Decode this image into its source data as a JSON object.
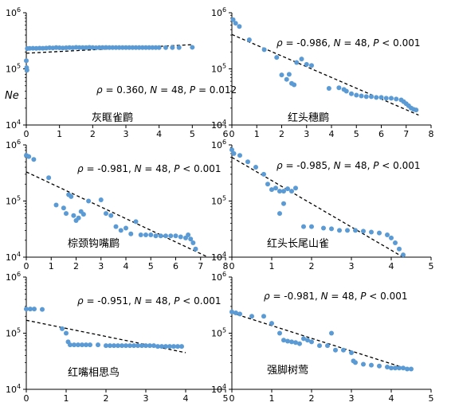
{
  "figure": {
    "y_axis_label": "Ne"
  },
  "chart_data": [
    {
      "type": "scatter",
      "species": "灰眶雀鹛",
      "stat": {
        "rho": "0.360",
        "n": "48",
        "p_operator": "=",
        "p": "0.012"
      },
      "xlim": [
        0,
        6
      ],
      "ylim": [
        10000,
        1000000
      ],
      "yscale": "log",
      "xticks": [
        0,
        1,
        2,
        3,
        4,
        5,
        6
      ],
      "yticks": [
        {
          "value": 10000,
          "base": "10",
          "exp": "4"
        },
        {
          "value": 100000,
          "base": "10",
          "exp": "5"
        },
        {
          "value": 1000000,
          "base": "10",
          "exp": "6"
        }
      ],
      "trend": [
        [
          0,
          190000
        ],
        [
          5,
          270000
        ]
      ],
      "points": [
        [
          0.0,
          140000
        ],
        [
          0.01,
          105000
        ],
        [
          0.02,
          95000
        ],
        [
          0.03,
          230000
        ],
        [
          0.1,
          232000
        ],
        [
          0.2,
          233000
        ],
        [
          0.3,
          232000
        ],
        [
          0.4,
          234000
        ],
        [
          0.5,
          233000
        ],
        [
          0.6,
          235000
        ],
        [
          0.7,
          238000
        ],
        [
          0.8,
          236000
        ],
        [
          0.9,
          240000
        ],
        [
          1.0,
          238000
        ],
        [
          1.1,
          236000
        ],
        [
          1.2,
          238000
        ],
        [
          1.3,
          240000
        ],
        [
          1.4,
          238000
        ],
        [
          1.5,
          242000
        ],
        [
          1.6,
          240000
        ],
        [
          1.7,
          240000
        ],
        [
          1.8,
          240000
        ],
        [
          1.9,
          242000
        ],
        [
          2.0,
          240000
        ],
        [
          2.1,
          238000
        ],
        [
          2.2,
          240000
        ],
        [
          2.3,
          240000
        ],
        [
          2.4,
          241000
        ],
        [
          2.5,
          240000
        ],
        [
          2.6,
          240000
        ],
        [
          2.7,
          240000
        ],
        [
          2.8,
          240000
        ],
        [
          2.9,
          240000
        ],
        [
          3.0,
          240000
        ],
        [
          3.1,
          240000
        ],
        [
          3.2,
          240000
        ],
        [
          3.3,
          240000
        ],
        [
          3.4,
          240000
        ],
        [
          3.5,
          240000
        ],
        [
          3.6,
          240000
        ],
        [
          3.7,
          240000
        ],
        [
          3.8,
          240000
        ],
        [
          3.9,
          240000
        ],
        [
          4.0,
          240000
        ],
        [
          4.2,
          240000
        ],
        [
          4.4,
          240000
        ],
        [
          4.6,
          240000
        ],
        [
          5.0,
          242000
        ]
      ]
    },
    {
      "type": "scatter",
      "species": "红头穗鹛",
      "stat": {
        "rho": "-0.986",
        "n": "48",
        "p_operator": "<",
        "p": "0.001"
      },
      "xlim": [
        0,
        8
      ],
      "ylim": [
        10000,
        1000000
      ],
      "yscale": "log",
      "xticks": [
        0,
        1,
        2,
        3,
        4,
        5,
        6,
        7,
        8
      ],
      "yticks": [
        {
          "value": 10000,
          "base": "10",
          "exp": "4"
        },
        {
          "value": 100000,
          "base": "10",
          "exp": "5"
        },
        {
          "value": 1000000,
          "base": "10",
          "exp": "6"
        }
      ],
      "trend": [
        [
          0,
          410000
        ],
        [
          7.5,
          15000
        ]
      ],
      "points": [
        [
          0.05,
          750000
        ],
        [
          0.15,
          650000
        ],
        [
          0.3,
          570000
        ],
        [
          0.7,
          330000
        ],
        [
          1.3,
          220000
        ],
        [
          1.8,
          160000
        ],
        [
          2.0,
          78000
        ],
        [
          2.2,
          65000
        ],
        [
          2.3,
          80000
        ],
        [
          2.4,
          55000
        ],
        [
          2.5,
          52000
        ],
        [
          2.6,
          130000
        ],
        [
          2.8,
          150000
        ],
        [
          3.0,
          120000
        ],
        [
          3.2,
          115000
        ],
        [
          3.9,
          45000
        ],
        [
          4.3,
          46000
        ],
        [
          4.5,
          43000
        ],
        [
          4.6,
          40000
        ],
        [
          4.8,
          36000
        ],
        [
          5.0,
          34000
        ],
        [
          5.2,
          33000
        ],
        [
          5.4,
          32000
        ],
        [
          5.6,
          32000
        ],
        [
          5.8,
          31000
        ],
        [
          6.0,
          31000
        ],
        [
          6.2,
          30000
        ],
        [
          6.4,
          30000
        ],
        [
          6.6,
          29000
        ],
        [
          6.8,
          28000
        ],
        [
          6.9,
          26000
        ],
        [
          7.0,
          24000
        ],
        [
          7.1,
          22000
        ],
        [
          7.2,
          20000
        ],
        [
          7.3,
          19000
        ],
        [
          7.4,
          18500
        ]
      ]
    },
    {
      "type": "scatter",
      "species": "棕颈钩嘴鹛",
      "stat": {
        "rho": "-0.981",
        "n": "48",
        "p_operator": "<",
        "p": "0.001"
      },
      "xlim": [
        0,
        8
      ],
      "ylim": [
        10000,
        1000000
      ],
      "yscale": "log",
      "xticks": [
        0,
        1,
        2,
        3,
        4,
        5,
        6,
        7,
        8
      ],
      "yticks": [
        {
          "value": 10000,
          "base": "10",
          "exp": "4"
        },
        {
          "value": 100000,
          "base": "10",
          "exp": "5"
        },
        {
          "value": 1000000,
          "base": "10",
          "exp": "6"
        }
      ],
      "trend": [
        [
          0,
          330000
        ],
        [
          7.3,
          10000
        ]
      ],
      "points": [
        [
          0.0,
          650000
        ],
        [
          0.1,
          620000
        ],
        [
          0.3,
          550000
        ],
        [
          0.9,
          260000
        ],
        [
          1.2,
          85000
        ],
        [
          1.5,
          75000
        ],
        [
          1.6,
          60000
        ],
        [
          1.7,
          130000
        ],
        [
          1.8,
          120000
        ],
        [
          1.9,
          55000
        ],
        [
          2.0,
          45000
        ],
        [
          2.1,
          50000
        ],
        [
          2.2,
          65000
        ],
        [
          2.3,
          58000
        ],
        [
          2.5,
          100000
        ],
        [
          3.0,
          105000
        ],
        [
          3.2,
          60000
        ],
        [
          3.4,
          55000
        ],
        [
          3.6,
          35000
        ],
        [
          3.8,
          30000
        ],
        [
          4.0,
          33000
        ],
        [
          4.2,
          26000
        ],
        [
          4.4,
          43000
        ],
        [
          4.6,
          25000
        ],
        [
          4.8,
          25000
        ],
        [
          5.0,
          25000
        ],
        [
          5.2,
          24000
        ],
        [
          5.4,
          24000
        ],
        [
          5.6,
          24000
        ],
        [
          5.8,
          24000
        ],
        [
          6.0,
          24000
        ],
        [
          6.2,
          23000
        ],
        [
          6.4,
          22000
        ],
        [
          6.5,
          25000
        ],
        [
          6.6,
          21000
        ],
        [
          6.7,
          18000
        ],
        [
          6.8,
          14000
        ]
      ]
    },
    {
      "type": "scatter",
      "species": "红头长尾山雀",
      "stat": {
        "rho": "-0.985",
        "n": "48",
        "p_operator": "<",
        "p": "0.001"
      },
      "xlim": [
        0,
        5
      ],
      "ylim": [
        10000,
        1000000
      ],
      "yscale": "log",
      "xticks": [
        0,
        1,
        2,
        3,
        4,
        5
      ],
      "yticks": [
        {
          "value": 10000,
          "base": "10",
          "exp": "4"
        },
        {
          "value": 100000,
          "base": "10",
          "exp": "5"
        },
        {
          "value": 1000000,
          "base": "10",
          "exp": "6"
        }
      ],
      "trend": [
        [
          0,
          600000
        ],
        [
          4.3,
          10000
        ]
      ],
      "points": [
        [
          0.0,
          820000
        ],
        [
          0.05,
          700000
        ],
        [
          0.2,
          650000
        ],
        [
          0.4,
          500000
        ],
        [
          0.6,
          400000
        ],
        [
          0.8,
          300000
        ],
        [
          0.9,
          200000
        ],
        [
          1.0,
          160000
        ],
        [
          1.1,
          170000
        ],
        [
          1.2,
          150000
        ],
        [
          1.3,
          150000
        ],
        [
          1.4,
          165000
        ],
        [
          1.5,
          150000
        ],
        [
          1.6,
          170000
        ],
        [
          1.2,
          60000
        ],
        [
          1.3,
          90000
        ],
        [
          1.8,
          35000
        ],
        [
          2.0,
          35000
        ],
        [
          2.3,
          33000
        ],
        [
          2.5,
          32000
        ],
        [
          2.7,
          30000
        ],
        [
          2.9,
          30000
        ],
        [
          3.1,
          30000
        ],
        [
          3.3,
          29000
        ],
        [
          3.5,
          28000
        ],
        [
          3.7,
          27000
        ],
        [
          3.9,
          25000
        ],
        [
          4.0,
          22000
        ],
        [
          4.1,
          18000
        ],
        [
          4.2,
          14000
        ],
        [
          4.3,
          11000
        ]
      ]
    },
    {
      "type": "scatter",
      "species": "红嘴相思鸟",
      "stat": {
        "rho": "-0.951",
        "n": "48",
        "p_operator": "<",
        "p": "0.001"
      },
      "xlim": [
        0,
        5
      ],
      "ylim": [
        10000,
        1000000
      ],
      "yscale": "log",
      "xticks": [
        0,
        1,
        2,
        3,
        4,
        5
      ],
      "yticks": [
        {
          "value": 10000,
          "base": "10",
          "exp": "4"
        },
        {
          "value": 100000,
          "base": "10",
          "exp": "5"
        },
        {
          "value": 1000000,
          "base": "10",
          "exp": "6"
        }
      ],
      "trend": [
        [
          0,
          170000
        ],
        [
          4,
          45000
        ]
      ],
      "points": [
        [
          0.0,
          270000
        ],
        [
          0.1,
          270000
        ],
        [
          0.2,
          270000
        ],
        [
          0.4,
          265000
        ],
        [
          0.9,
          120000
        ],
        [
          1.0,
          100000
        ],
        [
          1.05,
          70000
        ],
        [
          1.1,
          62000
        ],
        [
          1.2,
          62000
        ],
        [
          1.3,
          62000
        ],
        [
          1.4,
          62000
        ],
        [
          1.5,
          62000
        ],
        [
          1.6,
          62000
        ],
        [
          1.8,
          62000
        ],
        [
          2.0,
          60000
        ],
        [
          2.1,
          60000
        ],
        [
          2.2,
          60000
        ],
        [
          2.3,
          60000
        ],
        [
          2.4,
          60000
        ],
        [
          2.5,
          60000
        ],
        [
          2.6,
          60000
        ],
        [
          2.7,
          60000
        ],
        [
          2.8,
          60000
        ],
        [
          2.9,
          60000
        ],
        [
          3.0,
          60000
        ],
        [
          3.1,
          60000
        ],
        [
          3.2,
          60000
        ],
        [
          3.3,
          58000
        ],
        [
          3.4,
          58000
        ],
        [
          3.5,
          58000
        ],
        [
          3.6,
          58000
        ],
        [
          3.7,
          58000
        ],
        [
          3.8,
          58000
        ],
        [
          3.9,
          58000
        ]
      ]
    },
    {
      "type": "scatter",
      "species": "强脚树莺",
      "stat": {
        "rho": "-0.981",
        "n": "48",
        "p_operator": "<",
        "p": "0.001"
      },
      "xlim": [
        0,
        5
      ],
      "ylim": [
        10000,
        1000000
      ],
      "yscale": "log",
      "xticks": [
        0,
        1,
        2,
        3,
        4,
        5
      ],
      "yticks": [
        {
          "value": 10000,
          "base": "10",
          "exp": "4"
        },
        {
          "value": 100000,
          "base": "10",
          "exp": "5"
        },
        {
          "value": 1000000,
          "base": "10",
          "exp": "6"
        }
      ],
      "trend": [
        [
          0,
          230000
        ],
        [
          4.5,
          22000
        ]
      ],
      "points": [
        [
          0.0,
          240000
        ],
        [
          0.1,
          230000
        ],
        [
          0.2,
          220000
        ],
        [
          0.5,
          200000
        ],
        [
          0.8,
          200000
        ],
        [
          1.0,
          150000
        ],
        [
          1.2,
          100000
        ],
        [
          1.3,
          75000
        ],
        [
          1.4,
          72000
        ],
        [
          1.5,
          70000
        ],
        [
          1.6,
          68000
        ],
        [
          1.7,
          65000
        ],
        [
          1.8,
          80000
        ],
        [
          1.9,
          75000
        ],
        [
          2.0,
          70000
        ],
        [
          2.2,
          60000
        ],
        [
          2.4,
          60000
        ],
        [
          2.5,
          100000
        ],
        [
          2.6,
          50000
        ],
        [
          2.8,
          50000
        ],
        [
          3.0,
          45000
        ],
        [
          3.05,
          32000
        ],
        [
          3.1,
          30000
        ],
        [
          3.3,
          28000
        ],
        [
          3.5,
          27000
        ],
        [
          3.7,
          26000
        ],
        [
          3.9,
          25000
        ],
        [
          4.0,
          24000
        ],
        [
          4.1,
          24000
        ],
        [
          4.2,
          24000
        ],
        [
          4.3,
          24000
        ],
        [
          4.4,
          23000
        ],
        [
          4.5,
          23000
        ]
      ]
    }
  ]
}
